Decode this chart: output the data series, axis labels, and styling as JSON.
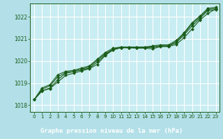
{
  "title": "Graphe pression niveau de la mer (hPa)",
  "bg_color": "#b3e0e8",
  "plot_bg_color": "#c8edf2",
  "grid_color": "#ffffff",
  "line_color": "#1a5c1a",
  "marker_color": "#1a5c1a",
  "label_bg_color": "#2d6e2d",
  "label_text_color": "#ffffff",
  "xlim": [
    -0.5,
    23.5
  ],
  "ylim": [
    1017.7,
    1022.6
  ],
  "xticks": [
    0,
    1,
    2,
    3,
    4,
    5,
    6,
    7,
    8,
    9,
    10,
    11,
    12,
    13,
    14,
    15,
    16,
    17,
    18,
    19,
    20,
    21,
    22,
    23
  ],
  "yticks": [
    1018,
    1019,
    1020,
    1021,
    1022
  ],
  "series": [
    [
      1018.25,
      1018.65,
      1018.75,
      1019.05,
      1019.35,
      1019.45,
      1019.55,
      1019.65,
      1019.85,
      1020.25,
      1020.5,
      1020.6,
      1020.6,
      1020.58,
      1020.58,
      1020.55,
      1020.65,
      1020.65,
      1020.75,
      1021.05,
      1021.45,
      1021.85,
      1022.15,
      1022.35
    ],
    [
      1018.25,
      1018.65,
      1018.78,
      1019.15,
      1019.45,
      1019.52,
      1019.6,
      1019.68,
      1019.95,
      1020.28,
      1020.52,
      1020.6,
      1020.6,
      1020.6,
      1020.6,
      1020.62,
      1020.68,
      1020.68,
      1020.82,
      1021.18,
      1021.58,
      1021.92,
      1022.28,
      1022.32
    ],
    [
      1018.25,
      1018.72,
      1018.88,
      1019.28,
      1019.48,
      1019.53,
      1019.63,
      1019.73,
      1020.03,
      1020.33,
      1020.53,
      1020.63,
      1020.63,
      1020.63,
      1020.63,
      1020.63,
      1020.68,
      1020.68,
      1020.88,
      1021.23,
      1021.68,
      1021.98,
      1022.33,
      1022.38
    ],
    [
      1018.25,
      1018.78,
      1018.93,
      1019.38,
      1019.53,
      1019.58,
      1019.68,
      1019.78,
      1020.08,
      1020.38,
      1020.58,
      1020.63,
      1020.63,
      1020.63,
      1020.63,
      1020.68,
      1020.73,
      1020.73,
      1020.93,
      1021.28,
      1021.73,
      1022.03,
      1022.38,
      1022.43
    ]
  ]
}
